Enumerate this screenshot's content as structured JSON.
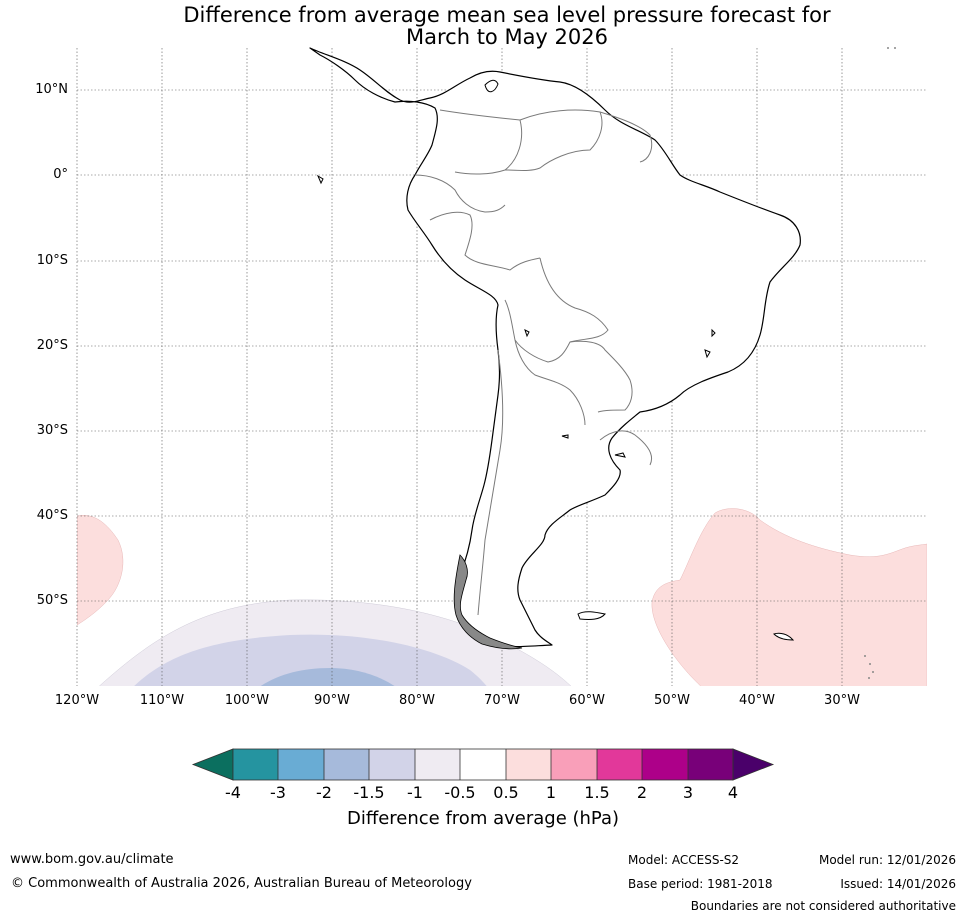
{
  "title_line1": "Difference from average mean sea level pressure forecast for",
  "title_line2": "March to May 2026",
  "lat_labels": [
    "10°N",
    "0°",
    "10°S",
    "20°S",
    "30°S",
    "40°S",
    "50°S"
  ],
  "lon_labels": [
    "120°W",
    "110°W",
    "100°W",
    "90°W",
    "80°W",
    "70°W",
    "60°W",
    "50°W",
    "40°W",
    "30°W"
  ],
  "colorbar": {
    "title": "Difference from average (hPa)",
    "tick_labels": [
      "-4",
      "-3",
      "-2",
      "-1.5",
      "-1",
      "-0.5",
      "0.5",
      "1",
      "1.5",
      "2",
      "3",
      "4"
    ],
    "colors": [
      "#0b6f5f",
      "#2594a0",
      "#69acd4",
      "#a6badb",
      "#d2d3e8",
      "#efebf2",
      "#ffffff",
      "#fcdedd",
      "#f99fb9",
      "#e2389a",
      "#ad0089",
      "#780079",
      "#4a006a"
    ]
  },
  "footer": {
    "url": "www.bom.gov.au/climate",
    "copyright": "© Commonwealth of Australia 2026, Australian Bureau of Meteorology",
    "model": "Model: ACCESS-S2",
    "base_period": "Base period: 1981-2018",
    "model_run": "Model run: 12/01/2026",
    "issued": "Issued: 14/01/2026",
    "disclaimer": "Boundaries are not considered authoritative"
  }
}
